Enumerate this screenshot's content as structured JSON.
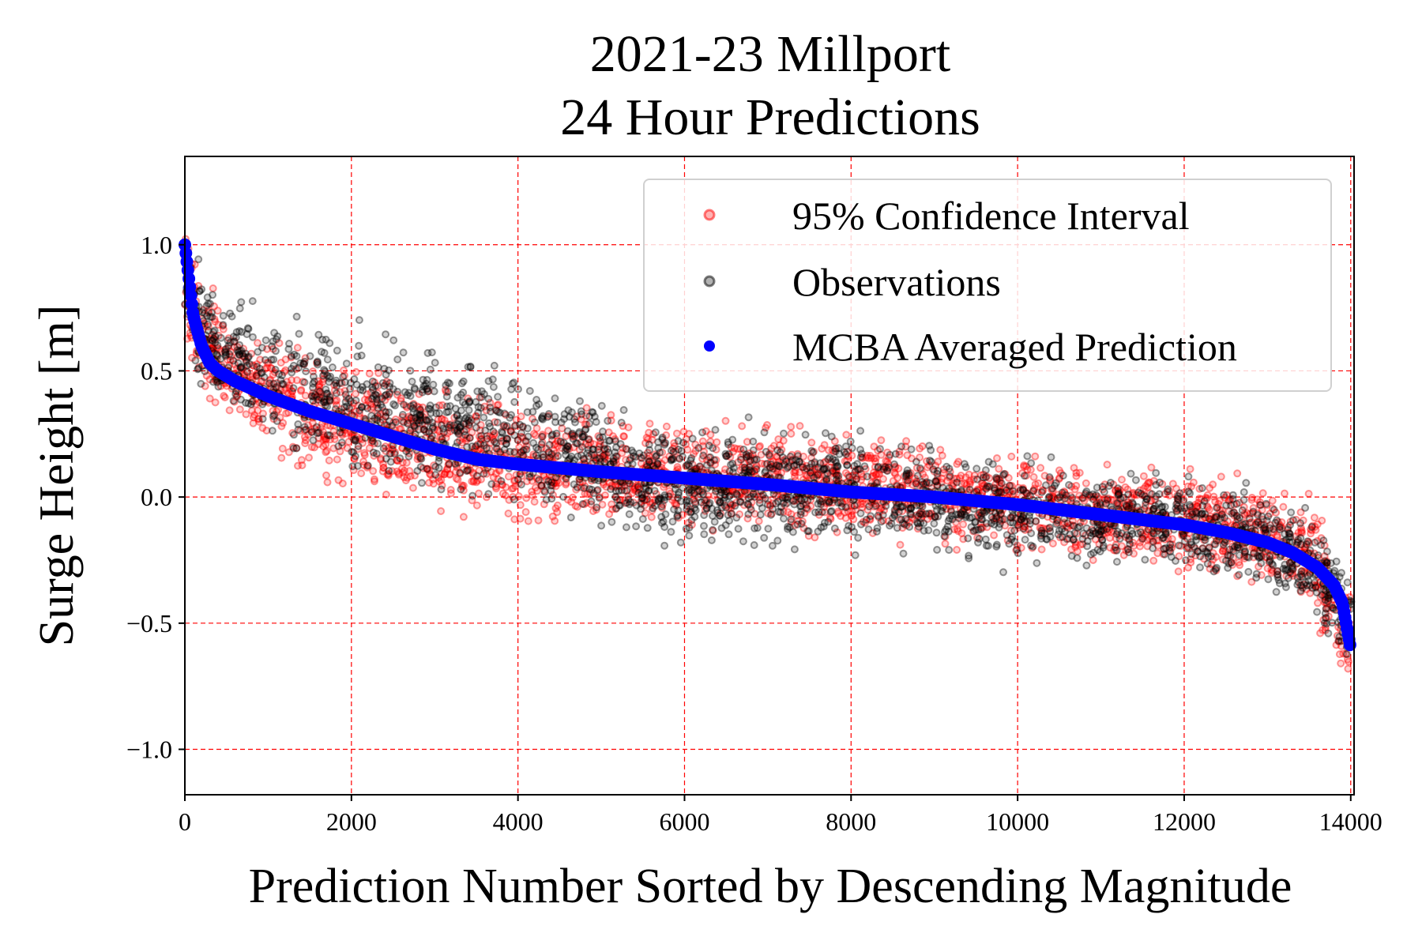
{
  "chart_data": {
    "type": "scatter",
    "title": [
      "2021-23 Millport",
      "24 Hour Predictions"
    ],
    "xlabel": "Prediction Number Sorted by Descending Magnitude",
    "ylabel": "Surge Height [m]",
    "xlim": [
      0,
      14040
    ],
    "ylim": [
      -1.18,
      1.35
    ],
    "xticks": [
      0,
      2000,
      4000,
      6000,
      8000,
      10000,
      12000,
      14000
    ],
    "xtick_labels": [
      "0",
      "2000",
      "4000",
      "6000",
      "8000",
      "10000",
      "12000",
      "14000"
    ],
    "yticks": [
      -1.0,
      -0.5,
      0.0,
      0.5,
      1.0
    ],
    "ytick_labels": [
      "−1.0",
      "−0.5",
      "0.0",
      "0.5",
      "1.0"
    ],
    "grid": true,
    "grid_color": "#ff0000",
    "legend_position": "top-right",
    "legend": [
      {
        "label": "95% Confidence Interval",
        "color": "#ff0000",
        "marker": "hollow-circle-faint"
      },
      {
        "label": "Observations",
        "color": "#000000",
        "marker": "hollow-circle-faint"
      },
      {
        "label": "MCBA Averaged Prediction",
        "color": "#0000ff",
        "marker": "filled-circle"
      }
    ],
    "n_points": 14000,
    "series": [
      {
        "name": "MCBA Averaged Prediction",
        "color": "#0000ff",
        "x": [
          0,
          100,
          200,
          300,
          400,
          600,
          800,
          1000,
          1500,
          2000,
          2500,
          3000,
          3500,
          4000,
          5000,
          6000,
          7000,
          8000,
          9000,
          10000,
          11000,
          12000,
          12500,
          13000,
          13300,
          13600,
          13800,
          13900,
          14000
        ],
        "y": [
          1.0,
          0.72,
          0.6,
          0.53,
          0.5,
          0.46,
          0.43,
          0.4,
          0.34,
          0.29,
          0.24,
          0.19,
          0.15,
          0.13,
          0.1,
          0.075,
          0.05,
          0.02,
          0.0,
          -0.03,
          -0.07,
          -0.11,
          -0.14,
          -0.18,
          -0.22,
          -0.28,
          -0.35,
          -0.42,
          -0.6
        ]
      },
      {
        "name": "95% Confidence Interval",
        "color": "#ff0000",
        "x": [
          0,
          200,
          500,
          1000,
          2000,
          3000,
          4000,
          6000,
          8000,
          10000,
          12000,
          13000,
          13500,
          14000
        ],
        "upper": [
          1.22,
          0.98,
          0.78,
          0.7,
          0.6,
          0.52,
          0.42,
          0.35,
          0.3,
          0.22,
          0.16,
          0.13,
          0.08,
          -0.3
        ],
        "lower": [
          0.5,
          0.33,
          0.22,
          0.1,
          -0.05,
          -0.12,
          -0.18,
          -0.18,
          -0.2,
          -0.27,
          -0.33,
          -0.42,
          -0.55,
          -0.85
        ]
      },
      {
        "name": "Observations",
        "color": "#000000",
        "x": [
          0,
          200,
          500,
          1000,
          2000,
          3000,
          4000,
          6000,
          8000,
          10000,
          12000,
          13000,
          13500,
          14000
        ],
        "upper": [
          1.1,
          0.95,
          0.82,
          0.8,
          0.72,
          0.66,
          0.56,
          0.33,
          0.32,
          0.2,
          0.13,
          0.07,
          0.0,
          -0.25
        ],
        "lower": [
          0.55,
          0.4,
          0.28,
          0.15,
          0.0,
          -0.08,
          -0.1,
          -0.24,
          -0.25,
          -0.32,
          -0.33,
          -0.43,
          -0.5,
          -0.75
        ]
      }
    ]
  }
}
